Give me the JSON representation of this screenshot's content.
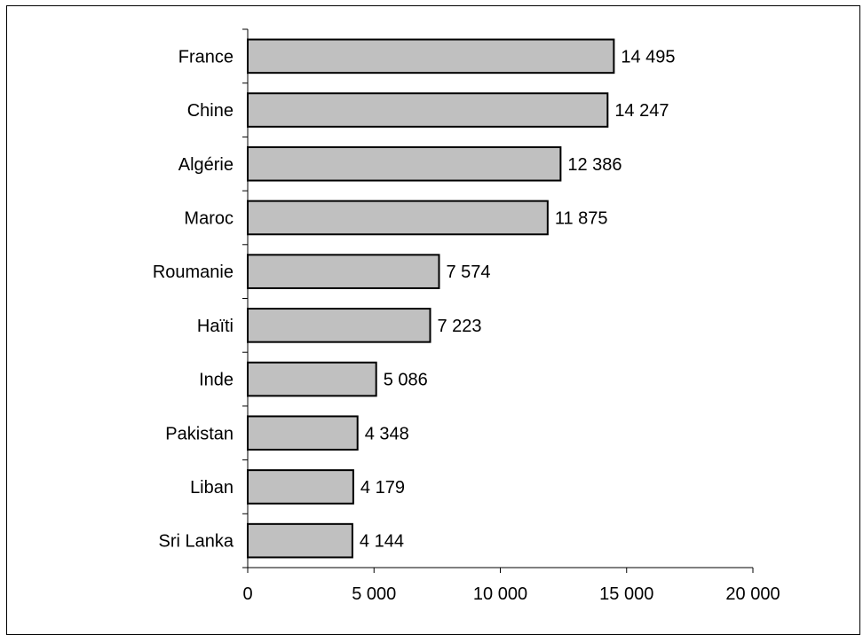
{
  "chart_data": {
    "type": "bar",
    "orientation": "horizontal",
    "categories": [
      "France",
      "Chine",
      "Algérie",
      "Maroc",
      "Roumanie",
      "Haïti",
      "Inde",
      "Pakistan",
      "Liban",
      "Sri Lanka"
    ],
    "values": [
      14495,
      14247,
      12386,
      11875,
      7574,
      7223,
      5086,
      4348,
      4179,
      4144
    ],
    "value_labels": [
      "14 495",
      "14 247",
      "12 386",
      "11 875",
      "7 574",
      "7 223",
      "5 086",
      "4 348",
      "4 179",
      "4 144"
    ],
    "x_ticks": [
      0,
      5000,
      10000,
      15000,
      20000
    ],
    "x_tick_labels": [
      "0",
      "5 000",
      "10 000",
      "15 000",
      "20 000"
    ],
    "xlim": [
      0,
      20000
    ],
    "title": "",
    "xlabel": "",
    "ylabel": "",
    "grid": false,
    "bar_color": "#c0c0c0",
    "bar_outline": "#000000"
  }
}
